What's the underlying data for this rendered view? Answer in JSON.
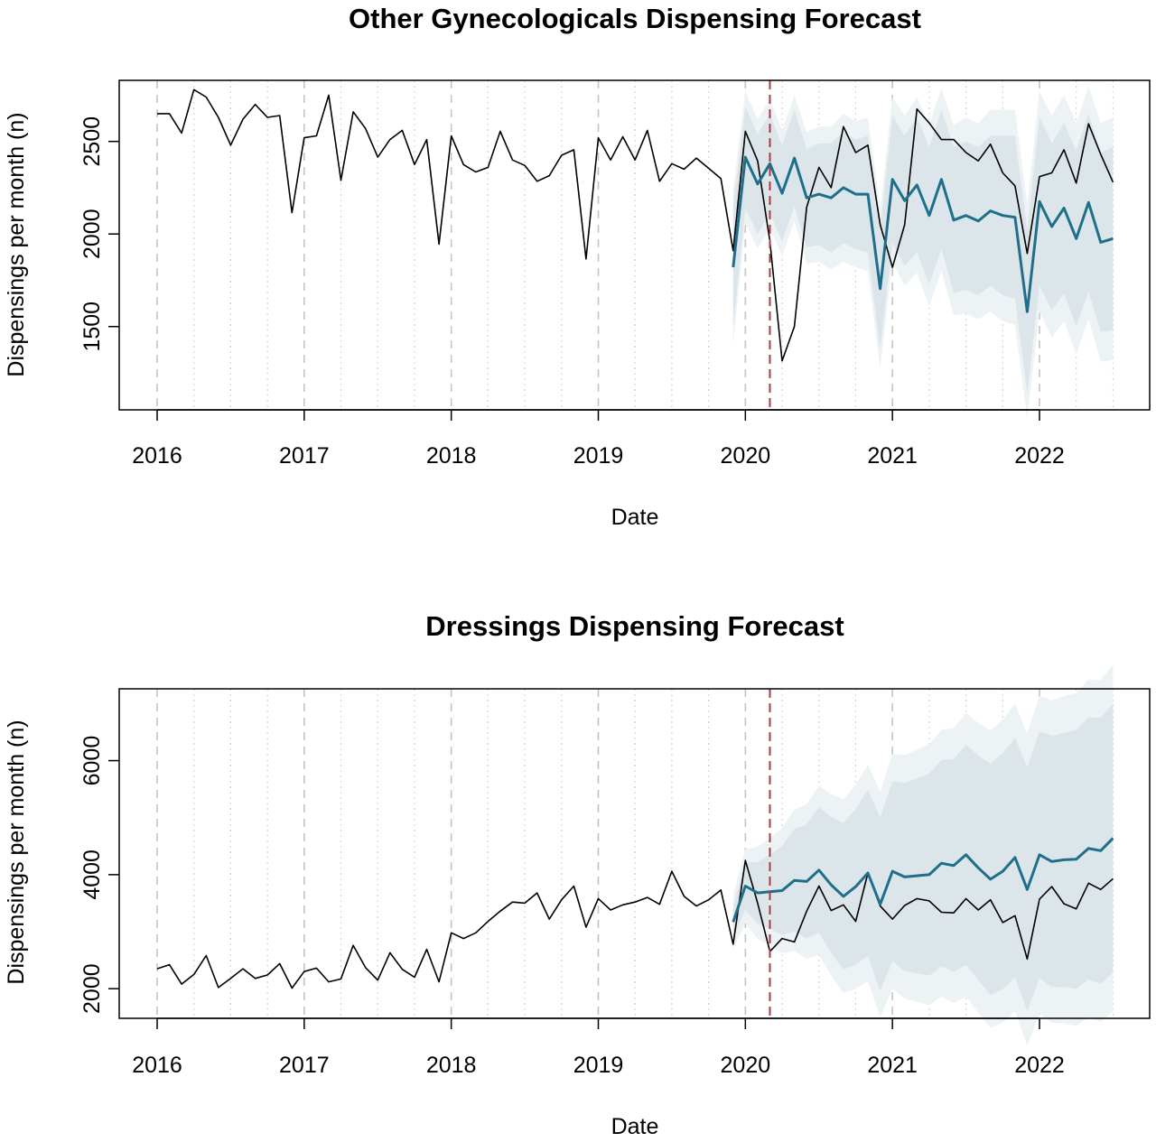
{
  "chart_data": [
    {
      "type": "line",
      "title": "Other Gynecologicals Dispensing Forecast",
      "xlabel": "Date",
      "ylabel": "Dispensings per month (n)",
      "x_start": "2015-12",
      "x_ticks": [
        "2016",
        "2017",
        "2018",
        "2019",
        "2020",
        "2021",
        "2022"
      ],
      "y_ticks": [
        1500,
        2000,
        2500
      ],
      "ylim": [
        1050,
        2830
      ],
      "grid": true,
      "intervention_date": "2020-03",
      "colors": {
        "observed": "#000000",
        "forecast": "#1f6f8b",
        "band_inner": "#dbe5ea",
        "band_outer": "#edf3f5",
        "intervention": "#b03a3a"
      },
      "series": [
        {
          "name": "",
          "role": "observed",
          "start": "2016-01",
          "values": [
            2650,
            2650,
            2545,
            2780,
            2740,
            2630,
            2480,
            2620,
            2700,
            2630,
            2640,
            2115,
            2520,
            2530,
            2750,
            2290,
            2660,
            2570,
            2415,
            2510,
            2560,
            2375,
            2510,
            1945,
            2530,
            2375,
            2335,
            2360,
            2555,
            2400,
            2370,
            2285,
            2315,
            2425,
            2455,
            1865,
            2520,
            2400,
            2525,
            2400,
            2560,
            2285,
            2380,
            2350,
            2410,
            2355,
            2300,
            1910,
            2555,
            2395,
            1960,
            1315,
            1500,
            2145,
            2360,
            2250,
            2580,
            2440,
            2480,
            2050,
            1820,
            2050,
            2675,
            2600,
            2510,
            2510,
            2440,
            2395,
            2485,
            2330,
            2260,
            1895,
            2310,
            2330,
            2455,
            2275,
            2595,
            2430,
            2280
          ]
        },
        {
          "name": "",
          "role": "forecast",
          "start": "2019-12",
          "values": [
            1820,
            2415,
            2270,
            2380,
            2220,
            2410,
            2195,
            2215,
            2195,
            2250,
            2215,
            2215,
            1705,
            2295,
            2180,
            2265,
            2100,
            2295,
            2075,
            2100,
            2070,
            2125,
            2100,
            2090,
            1580,
            2175,
            2040,
            2140,
            1975,
            2170,
            1955,
            1975
          ],
          "ci80_lower": [
            1490,
            2140,
            2000,
            2110,
            1960,
            2150,
            1930,
            1940,
            1900,
            1950,
            1920,
            1900,
            1380,
            1950,
            1830,
            1900,
            1730,
            1920,
            1680,
            1700,
            1670,
            1720,
            1670,
            1650,
            1140,
            1720,
            1590,
            1680,
            1500,
            1690,
            1470,
            1480
          ],
          "ci80_upper": [
            2150,
            2690,
            2540,
            2650,
            2480,
            2670,
            2460,
            2490,
            2490,
            2550,
            2510,
            2530,
            2030,
            2640,
            2530,
            2630,
            2470,
            2670,
            2470,
            2500,
            2470,
            2530,
            2530,
            2530,
            2020,
            2630,
            2490,
            2600,
            2450,
            2650,
            2440,
            2470
          ],
          "ci95_lower": [
            1400,
            2060,
            1920,
            2030,
            1880,
            2070,
            1840,
            1850,
            1810,
            1850,
            1820,
            1800,
            1270,
            1850,
            1720,
            1790,
            1610,
            1800,
            1560,
            1570,
            1540,
            1580,
            1530,
            1510,
            1000,
            1580,
            1440,
            1530,
            1350,
            1540,
            1310,
            1320
          ],
          "ci95_upper": [
            2240,
            2770,
            2620,
            2730,
            2560,
            2750,
            2550,
            2580,
            2580,
            2650,
            2610,
            2630,
            2140,
            2740,
            2640,
            2740,
            2590,
            2790,
            2590,
            2630,
            2600,
            2670,
            2670,
            2670,
            2160,
            2770,
            2640,
            2750,
            2600,
            2800,
            2600,
            2630
          ]
        }
      ]
    },
    {
      "type": "line",
      "title": "Dressings Dispensing Forecast",
      "xlabel": "Date",
      "ylabel": "Dispensings per month (n)",
      "x_start": "2015-12",
      "x_ticks": [
        "2016",
        "2017",
        "2018",
        "2019",
        "2020",
        "2021",
        "2022"
      ],
      "y_ticks": [
        2000,
        4000,
        6000
      ],
      "ylim": [
        1480,
        7260
      ],
      "grid": true,
      "intervention_date": "2020-03",
      "colors": {
        "observed": "#000000",
        "forecast": "#1f6f8b",
        "band_inner": "#dbe5ea",
        "band_outer": "#edf3f5",
        "intervention": "#b03a3a"
      },
      "series": [
        {
          "name": "",
          "role": "observed",
          "start": "2016-01",
          "values": [
            2350,
            2420,
            2080,
            2250,
            2580,
            2020,
            2180,
            2350,
            2180,
            2240,
            2440,
            2010,
            2300,
            2360,
            2120,
            2170,
            2760,
            2370,
            2150,
            2630,
            2340,
            2200,
            2690,
            2120,
            2980,
            2880,
            2980,
            3180,
            3360,
            3520,
            3500,
            3680,
            3220,
            3560,
            3800,
            3080,
            3580,
            3380,
            3470,
            3520,
            3600,
            3480,
            4060,
            3620,
            3450,
            3560,
            3730,
            2780,
            4250,
            3500,
            2650,
            2880,
            2820,
            3360,
            3800,
            3370,
            3470,
            3180,
            4030,
            3450,
            3220,
            3460,
            3580,
            3540,
            3340,
            3330,
            3580,
            3380,
            3560,
            3160,
            3280,
            2520,
            3570,
            3790,
            3490,
            3400,
            3850,
            3740,
            3930
          ]
        },
        {
          "name": "",
          "role": "forecast",
          "start": "2019-12",
          "values": [
            3170,
            3800,
            3680,
            3700,
            3720,
            3900,
            3880,
            4080,
            3820,
            3620,
            3790,
            4030,
            3480,
            4060,
            3960,
            3980,
            4000,
            4200,
            4160,
            4350,
            4120,
            3920,
            4060,
            4300,
            3740,
            4350,
            4230,
            4260,
            4270,
            4460,
            4420,
            4640
          ],
          "ci80_lower": [
            2900,
            3380,
            3140,
            3050,
            2940,
            3000,
            2880,
            2980,
            2630,
            2330,
            2430,
            2570,
            1960,
            2480,
            2310,
            2270,
            2230,
            2390,
            2290,
            2420,
            2150,
            1890,
            1990,
            2200,
            1600,
            2180,
            2030,
            2030,
            2000,
            2160,
            2090,
            2280
          ],
          "ci80_upper": [
            3440,
            4220,
            4220,
            4350,
            4500,
            4800,
            4880,
            5180,
            5010,
            4910,
            5150,
            5490,
            5000,
            5640,
            5610,
            5690,
            5770,
            6010,
            6030,
            6280,
            6090,
            5950,
            6130,
            6400,
            5880,
            6520,
            6430,
            6490,
            6540,
            6760,
            6750,
            7000
          ],
          "ci95_lower": [
            2700,
            3150,
            2870,
            2760,
            2620,
            2660,
            2520,
            2600,
            2230,
            1920,
            2000,
            2130,
            1500,
            2000,
            1820,
            1770,
            1710,
            1860,
            1750,
            1860,
            1580,
            1310,
            1400,
            1600,
            1000,
            1560,
            1400,
            1390,
            1350,
            1500,
            1420,
            1600
          ],
          "ci95_upper": [
            3640,
            4450,
            4490,
            4640,
            4820,
            5140,
            5240,
            5560,
            5410,
            5320,
            5580,
            5930,
            5460,
            6120,
            6100,
            6190,
            6290,
            6540,
            6570,
            6840,
            6660,
            6530,
            6720,
            7000,
            6480,
            7140,
            7060,
            7130,
            7190,
            7420,
            7420,
            7680
          ]
        }
      ]
    }
  ]
}
